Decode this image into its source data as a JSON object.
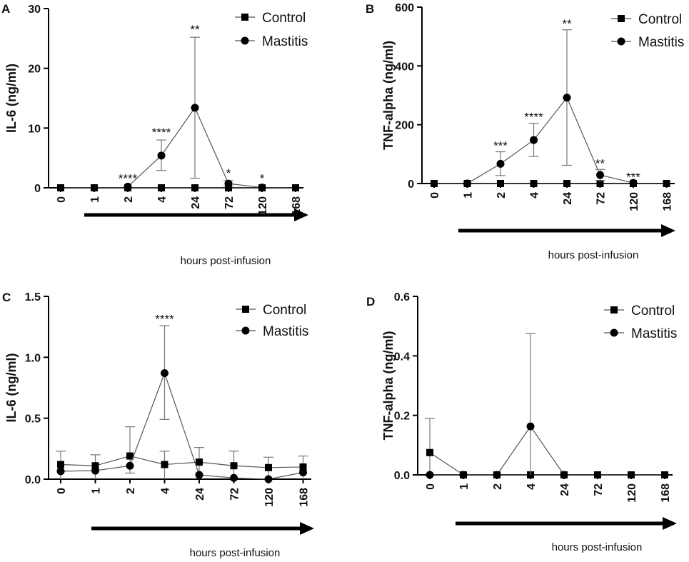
{
  "chart_data": [
    {
      "panel": "A",
      "type": "line",
      "ylabel": "IL-6 (ng/ml)",
      "xlabel": "hours post-infusion",
      "categories": [
        "0",
        "1",
        "2",
        "4",
        "24",
        "72",
        "120",
        "168"
      ],
      "ylim": [
        0,
        30
      ],
      "yticks": [
        0,
        10,
        20,
        30
      ],
      "legend": {
        "location": "top-right",
        "entries": [
          "Control",
          "Mastitis"
        ]
      },
      "series": [
        {
          "name": "Control",
          "marker": "square",
          "values": [
            0,
            0,
            0,
            0,
            0,
            0,
            0,
            0
          ],
          "errors": [
            null,
            null,
            null,
            null,
            null,
            null,
            null,
            null
          ]
        },
        {
          "name": "Mastitis",
          "marker": "circle",
          "values": [
            null,
            null,
            0.2,
            5.4,
            13.4,
            0.7,
            0.05,
            null
          ],
          "errors": [
            null,
            null,
            null,
            [
              2.9,
              8.0
            ],
            [
              1.6,
              25.2
            ],
            [
              0.3,
              1.2
            ],
            null,
            null
          ]
        }
      ],
      "annotations": [
        {
          "category": "2",
          "text": "****",
          "y": 0.9
        },
        {
          "category": "4",
          "text": "****",
          "y": 8.6
        },
        {
          "category": "24",
          "text": "**",
          "y": 25.8
        },
        {
          "category": "72",
          "text": "*",
          "y": 1.8
        },
        {
          "category": "120",
          "text": "*",
          "y": 0.9
        }
      ]
    },
    {
      "panel": "B",
      "type": "line",
      "ylabel": "TNF-alpha  (ng/ml)",
      "xlabel": "hours post-infusion",
      "categories": [
        "0",
        "1",
        "2",
        "4",
        "24",
        "72",
        "120",
        "168"
      ],
      "ylim": [
        0,
        600
      ],
      "yticks": [
        0,
        200,
        400,
        600
      ],
      "legend": {
        "location": "top-right",
        "entries": [
          "Control",
          "Mastitis"
        ]
      },
      "series": [
        {
          "name": "Control",
          "marker": "square",
          "values": [
            0,
            0,
            0,
            0,
            0,
            0,
            0,
            0
          ],
          "errors": [
            null,
            null,
            null,
            null,
            null,
            null,
            null,
            null
          ]
        },
        {
          "name": "Mastitis",
          "marker": "circle",
          "values": [
            null,
            0,
            67,
            148,
            292,
            29,
            2,
            null
          ],
          "errors": [
            null,
            null,
            [
              27,
              108
            ],
            [
              92,
              205
            ],
            [
              62,
              523
            ],
            [
              10,
              48
            ],
            null,
            null
          ]
        }
      ],
      "annotations": [
        {
          "category": "2",
          "text": "***",
          "y": 115
        },
        {
          "category": "4",
          "text": "****",
          "y": 212
        },
        {
          "category": "24",
          "text": "**",
          "y": 530
        },
        {
          "category": "72",
          "text": "**",
          "y": 55
        },
        {
          "category": "120",
          "text": "***",
          "y": 8
        }
      ]
    },
    {
      "panel": "C",
      "type": "line",
      "ylabel": "IL-6 (ng/ml)",
      "xlabel": "hours post-infusion",
      "categories": [
        "0",
        "1",
        "2",
        "4",
        "24",
        "72",
        "120",
        "168"
      ],
      "ylim": [
        0,
        1.5
      ],
      "yticks": [
        0.0,
        0.5,
        1.0,
        1.5
      ],
      "ytick_labels": [
        "0.0",
        "0.5",
        "1.0",
        "1.5"
      ],
      "legend": {
        "location": "top-right",
        "entries": [
          "Control",
          "Mastitis"
        ]
      },
      "series": [
        {
          "name": "Control",
          "marker": "square",
          "values": [
            0.12,
            0.11,
            0.19,
            0.12,
            0.14,
            0.11,
            0.095,
            0.1
          ],
          "errors": [
            [
              0.0,
              0.23
            ],
            [
              0.0,
              0.2
            ],
            [
              0.05,
              0.43
            ],
            [
              0.0,
              0.23
            ],
            [
              0.0,
              0.26
            ],
            [
              0.0,
              0.23
            ],
            [
              0.0,
              0.18
            ],
            [
              0.0,
              0.19
            ]
          ]
        },
        {
          "name": "Mastitis",
          "marker": "circle",
          "values": [
            0.065,
            0.07,
            0.11,
            0.87,
            0.035,
            0.01,
            0.0,
            0.055
          ],
          "errors": [
            null,
            null,
            null,
            [
              0.49,
              1.26
            ],
            null,
            null,
            null,
            null
          ]
        }
      ],
      "annotations": [
        {
          "category": "4",
          "text": "****",
          "y": 1.28
        }
      ]
    },
    {
      "panel": "D",
      "type": "line",
      "ylabel": "TNF-alpha  (ng/ml)",
      "xlabel": "hours post-infusion",
      "categories": [
        "0",
        "1",
        "2",
        "4",
        "24",
        "72",
        "120",
        "168"
      ],
      "ylim": [
        0,
        0.6
      ],
      "yticks": [
        0.0,
        0.2,
        0.4,
        0.6
      ],
      "ytick_labels": [
        "0.0",
        "0.2",
        "0.4",
        "0.6"
      ],
      "legend": {
        "location": "top-right",
        "entries": [
          "Control",
          "Mastitis"
        ]
      },
      "series": [
        {
          "name": "Control",
          "marker": "square",
          "values": [
            0.075,
            0,
            0,
            0,
            0,
            0,
            0,
            0
          ],
          "errors": [
            [
              0.0,
              0.19
            ],
            null,
            null,
            null,
            null,
            null,
            null,
            null
          ]
        },
        {
          "name": "Mastitis",
          "marker": "circle",
          "values": [
            0,
            0,
            0,
            0.163,
            0,
            null,
            null,
            null
          ],
          "errors": [
            null,
            null,
            null,
            [
              0.0,
              0.475
            ],
            null,
            null,
            null,
            null
          ]
        }
      ],
      "annotations": []
    }
  ]
}
